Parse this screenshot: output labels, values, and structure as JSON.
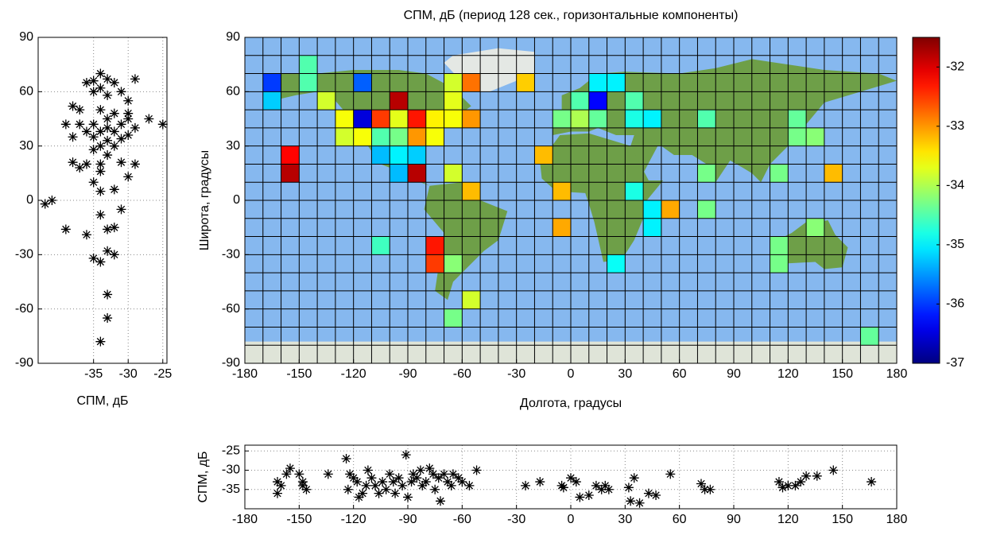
{
  "chart_data": [
    {
      "type": "heatmap",
      "title": "СПМ, дБ (период 128 сек., горизонтальные компоненты)",
      "xlabel": "Долгота, градусы",
      "ylabel": "Широта, градусы",
      "xlim": [
        -180,
        180
      ],
      "ylim": [
        -90,
        90
      ],
      "xticks": [
        -180,
        -150,
        -120,
        -90,
        -60,
        -30,
        0,
        30,
        60,
        90,
        120,
        150,
        180
      ],
      "yticks": [
        -90,
        -60,
        -30,
        0,
        30,
        60,
        90
      ],
      "grid_spacing": 10,
      "colormap": "jet",
      "clim": [
        -37,
        -31.5
      ],
      "colorbar_ticks": [
        -37,
        -36,
        -35,
        -34,
        -33,
        -32
      ],
      "x": [
        -165,
        -165,
        -145,
        -145,
        -115,
        -135,
        -95,
        -65,
        -55,
        -65,
        -25,
        -125,
        -115,
        -105,
        -95,
        -85,
        -75,
        -65,
        -55,
        -125,
        -115,
        -105,
        -95,
        -85,
        -75,
        -155,
        -155,
        -105,
        -95,
        -85,
        -15,
        -95,
        -85,
        -65,
        -55,
        -5,
        35,
        45,
        55,
        75,
        -5,
        45,
        135,
        -75,
        -105,
        115,
        -75,
        -65,
        25,
        115,
        -55,
        -65,
        165,
        15,
        25,
        15,
        5,
        35,
        -5,
        5,
        15,
        35,
        45,
        75,
        125,
        125,
        135,
        75,
        115,
        145
      ],
      "y": [
        65,
        55,
        75,
        65,
        65,
        55,
        55,
        65,
        65,
        55,
        65,
        45,
        45,
        45,
        45,
        45,
        45,
        45,
        45,
        35,
        35,
        35,
        35,
        35,
        35,
        25,
        15,
        25,
        25,
        25,
        25,
        15,
        15,
        15,
        5,
        5,
        5,
        -5,
        -5,
        -5,
        -15,
        -15,
        -15,
        -25,
        -25,
        -25,
        -35,
        -35,
        -35,
        -35,
        -55,
        -65,
        -75,
        65,
        65,
        55,
        55,
        55,
        45,
        45,
        45,
        45,
        45,
        45,
        45,
        35,
        35,
        15,
        15,
        15
      ],
      "values": [
        -36,
        -35.2,
        -34.5,
        -34.5,
        -35.8,
        -33.8,
        -31.8,
        -33.8,
        -32.8,
        -33.7,
        -33.3,
        -33.6,
        -36.5,
        -32.5,
        -33.7,
        -32.3,
        -33.5,
        -33.6,
        -33,
        -33.8,
        -33.6,
        -34.5,
        -34.3,
        -33,
        -33.6,
        -32.2,
        -31.8,
        -35.3,
        -35,
        -35.2,
        -33.2,
        -35.3,
        -31.8,
        -33.8,
        -33.2,
        -33.2,
        -34.8,
        -35,
        -33.1,
        -34.3,
        -33.1,
        -35,
        -34.2,
        -32.3,
        -34.6,
        -34.3,
        -32.5,
        -34.2,
        -34.9,
        -34.3,
        -33.8,
        -34.3,
        -34.4,
        -35,
        -35,
        -36.3,
        -34.5,
        -34.5,
        -34.3,
        -34,
        -34.4,
        -34.8,
        -35,
        -34.5,
        -34.4,
        -34.3,
        -34.2,
        -34.3,
        -34.3,
        -33.2
      ]
    },
    {
      "type": "scatter",
      "xlabel": "СПМ, дБ",
      "xlim": [
        -43,
        -24.4
      ],
      "ylim": [
        -90,
        90
      ],
      "xticks": [
        -35,
        -30,
        -25
      ],
      "yticks": [
        -90,
        -60,
        -30,
        0,
        30,
        60,
        90
      ],
      "grid": true,
      "color": "#000000",
      "x": [
        -33,
        -34,
        -35,
        -36,
        -32,
        -29,
        -34,
        -35,
        -33,
        -31,
        -30,
        -38,
        -37,
        -34,
        -32,
        -30,
        -33,
        -30,
        -27,
        -25,
        -39,
        -37,
        -35,
        -33,
        -31,
        -29,
        -36,
        -34,
        -32,
        -30,
        -38,
        -35,
        -33,
        -31,
        -34,
        -32,
        -35,
        -33,
        -38,
        -36,
        -34,
        -31,
        -29,
        -37,
        -34,
        -30,
        -35,
        -32,
        -34,
        -41,
        -42,
        -31,
        -34,
        -39,
        -36,
        -33,
        -32,
        -35,
        -34,
        -33,
        -32,
        -33,
        -33,
        -34
      ],
      "y": [
        67,
        70,
        66,
        65,
        65,
        67,
        62,
        60,
        58,
        60,
        55,
        52,
        50,
        50,
        48,
        48,
        45,
        45,
        45,
        42,
        42,
        42,
        42,
        40,
        42,
        40,
        38,
        38,
        38,
        36,
        35,
        35,
        33,
        34,
        30,
        30,
        28,
        25,
        21,
        20,
        20,
        21,
        20,
        18,
        16,
        13,
        10,
        6,
        5,
        0,
        -2,
        -5,
        -8,
        -16,
        -19,
        -16,
        -15,
        -32,
        -34,
        -28,
        -30,
        -52,
        -65,
        -78
      ]
    },
    {
      "type": "scatter",
      "ylabel": "СПМ, дБ",
      "xlim": [
        -180,
        180
      ],
      "ylim": [
        -40,
        -23.5
      ],
      "xticks": [
        -180,
        -150,
        -120,
        -90,
        -60,
        -30,
        0,
        30,
        60,
        90,
        120,
        150,
        180
      ],
      "yticks": [
        -35,
        -30,
        -25
      ],
      "grid": true,
      "color": "#000000",
      "x": [
        -162,
        -162,
        -160,
        -157,
        -155,
        -150,
        -148,
        -148,
        -146,
        -134,
        -124,
        -123,
        -122,
        -120,
        -118,
        -117,
        -115,
        -113,
        -112,
        -110,
        -108,
        -106,
        -104,
        -102,
        -100,
        -98,
        -97,
        -95,
        -93,
        -91,
        -90,
        -88,
        -87,
        -85,
        -83,
        -82,
        -80,
        -78,
        -76,
        -75,
        -73,
        -72,
        -70,
        -68,
        -66,
        -65,
        -62,
        -60,
        -56,
        -52,
        -25,
        -17,
        -5,
        -4,
        0,
        3,
        5,
        10,
        14,
        17,
        19,
        21,
        32,
        33,
        35,
        38,
        43,
        47,
        55,
        72,
        74,
        77,
        115,
        117,
        120,
        124,
        127,
        130,
        136,
        145,
        166
      ],
      "y": [
        -33,
        -36,
        -34,
        -31,
        -29.5,
        -31,
        -33,
        -34,
        -35,
        -31,
        -27,
        -35,
        -31,
        -32,
        -33,
        -37,
        -36,
        -34,
        -30,
        -32,
        -34,
        -36,
        -33,
        -35,
        -31,
        -33,
        -36,
        -32,
        -34,
        -26,
        -37,
        -33,
        -31,
        -32,
        -30,
        -34,
        -33,
        -29.5,
        -31,
        -35,
        -32,
        -38,
        -31,
        -33,
        -34,
        -31,
        -32,
        -33,
        -34,
        -30,
        -34,
        -33,
        -34,
        -34.5,
        -32,
        -33,
        -37,
        -36.5,
        -34,
        -35,
        -34,
        -35,
        -34.5,
        -38,
        -32,
        -38.5,
        -36,
        -36.5,
        -31,
        -33.5,
        -35,
        -35,
        -33,
        -34.5,
        -34,
        -34,
        -33,
        -31.5,
        -31.5,
        -30,
        -33
      ]
    }
  ]
}
